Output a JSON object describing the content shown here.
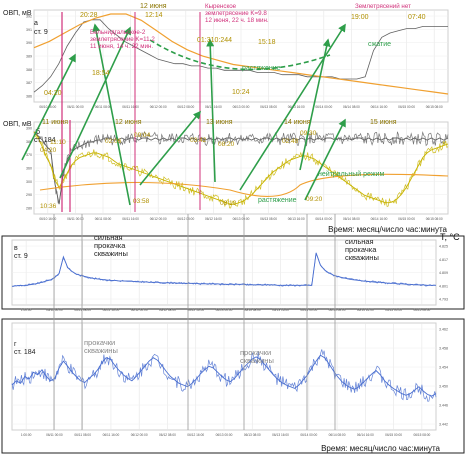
{
  "chart_data": [
    {
      "id": "a",
      "type": "line",
      "panel_letter": "а",
      "station": "ст. 9",
      "ylabel": "ОВП, мВ",
      "ylim": [
        -370,
        392
      ],
      "y_ticks": [
        392,
        391,
        390,
        389,
        388,
        387,
        386
      ],
      "x_ticks": [
        "06/10 16:00",
        "06/11 00:00",
        "06/11 08:00",
        "06/11 16:00",
        "06/12 00:00",
        "06/12 08:00",
        "06/12 16:00",
        "06/13 00:00",
        "06/13 08:00",
        "06/13 16:00",
        "06/14 00:00",
        "06/14 08:00",
        "06/14 16:00",
        "06/15 00:00",
        "06/15 08:00"
      ],
      "day_labels": [
        {
          "text": "12 июня",
          "x": 0.39
        }
      ],
      "series": [
        {
          "color": "#606060",
          "y": [
            388.3,
            388.6,
            389.0,
            389.6,
            390.4,
            391.0,
            391.5,
            391.6,
            391.6,
            391.2,
            390.9,
            390.6,
            390.4,
            390.2,
            390.0,
            389.8,
            389.7,
            389.6,
            389.6,
            389.5,
            389.5,
            389.4,
            389.4,
            389.3,
            389.3,
            389.3,
            389.3,
            389.2,
            389.2,
            389.2,
            389.1,
            389.1,
            389.1,
            389.0,
            389.0,
            389.0,
            389.0,
            388.9,
            388.9,
            388.9,
            389.0,
            390.2,
            390.8,
            391.0,
            391.1,
            391.2,
            391.2,
            391.3,
            391.3,
            391.3,
            391.3
          ]
        }
      ],
      "envelope_orange": [
        390.3,
        390.6,
        391.0,
        391.4,
        391.7,
        391.9,
        391.9,
        391.6,
        391.1,
        390.6,
        390.2,
        389.9,
        389.7,
        389.5,
        389.4,
        389.3,
        389.2,
        389.1,
        389.0,
        388.9,
        388.8,
        388.7,
        388.6,
        388.5,
        388.4,
        388.3,
        388.2,
        388.1
      ],
      "annotations": [
        {
          "text": "20:28",
          "color": "#b09000"
        },
        {
          "text": "12:14",
          "color": "#b09000"
        },
        {
          "text": "18:54",
          "color": "#b09000"
        },
        {
          "text": "01:310:244",
          "color": "#b09000"
        },
        {
          "text": "15:18",
          "color": "#b09000"
        },
        {
          "text": "19:00",
          "color": "#b09000"
        },
        {
          "text": "07:40",
          "color": "#b09000"
        },
        {
          "text": "10:24",
          "color": "#b09000"
        },
        {
          "text": "04:20",
          "color": "#b09000"
        },
        {
          "text": "растяжение",
          "color": "#2e9e4a"
        },
        {
          "text": "сжатие",
          "color": "#2e9e4a"
        }
      ],
      "events": [
        {
          "lines": [
            "Бельнидгальское-2",
            "землетрясение K=11.2",
            "11 июня, 14 ч. 22 мин."
          ],
          "color": "#d0307a"
        },
        {
          "lines": [
            "Кыренское",
            "землетрясение K=9.8",
            "12 июня, 22 ч. 18 мин."
          ],
          "color": "#d0307a"
        },
        {
          "lines": [
            "Землетрясений нет"
          ],
          "color": "#d0307a"
        }
      ]
    },
    {
      "id": "b",
      "type": "line",
      "panel_letter": "б",
      "station": "ст. 184",
      "ylabel": "ОВП, мВ",
      "ylim": [
        280,
        390
      ],
      "y_ticks": [
        390,
        380,
        370,
        360,
        300,
        290,
        280
      ],
      "x_ticks": [
        "06/10 16:00",
        "06/11 00:00",
        "06/11 08:00",
        "06/11 16:00",
        "06/12 00:00",
        "06/12 08:00",
        "06/12 16:00",
        "06/13 00:00",
        "06/13 08:00",
        "06/13 16:00",
        "06/14 00:00",
        "06/14 08:00",
        "06/14 16:00",
        "06/15 00:00",
        "06/15 08:00"
      ],
      "day_labels": [
        {
          "text": "11 июня"
        },
        {
          "text": "12 июня"
        },
        {
          "text": "13 июня"
        },
        {
          "text": "14 июня"
        },
        {
          "text": "15 июня"
        }
      ],
      "series": [
        {
          "color": "#606060",
          "y": [
            365,
            363,
            361,
            358,
            356,
            340,
            330,
            345,
            352,
            355,
            357,
            358,
            359,
            360,
            360,
            361,
            361,
            362,
            362,
            361,
            361,
            362,
            361,
            362,
            362,
            361,
            362,
            362,
            361,
            362,
            361,
            362,
            361,
            362,
            361,
            362,
            362,
            361,
            362,
            361,
            362,
            361,
            362,
            361,
            362,
            361,
            362,
            362,
            361,
            362,
            361,
            362,
            361,
            362,
            361,
            362,
            362,
            361,
            362,
            361,
            362,
            361,
            362,
            361,
            362,
            361,
            362,
            361,
            362,
            361,
            362,
            362,
            361,
            362,
            361,
            362,
            361,
            362,
            362,
            361,
            362,
            361,
            362,
            361,
            362,
            361,
            362,
            362,
            361,
            362,
            361,
            362,
            361,
            362,
            361,
            362,
            361,
            362,
            361,
            362
          ]
        },
        {
          "color": "#c8b400",
          "y": [
            352,
            348,
            342,
            335,
            330,
            320,
            315,
            320,
            325,
            330,
            333,
            335,
            336,
            337,
            338,
            338,
            337,
            336,
            335,
            333,
            331,
            330,
            329,
            328,
            327,
            326,
            325,
            324,
            323,
            322,
            321,
            320,
            319,
            318,
            317,
            316,
            315,
            314,
            313,
            312,
            311,
            310,
            309,
            308,
            307,
            306,
            305,
            304,
            304,
            305,
            306,
            308,
            310,
            313,
            316,
            319,
            322,
            325,
            327,
            329,
            331,
            333,
            334,
            335,
            336,
            336,
            335,
            334,
            332,
            330,
            328,
            326,
            324,
            322,
            320,
            318,
            316,
            314,
            312,
            310,
            309,
            308,
            307,
            306,
            305,
            305,
            306,
            308,
            311,
            315,
            320,
            325,
            330,
            335,
            338,
            340,
            341,
            342,
            343,
            344
          ]
        }
      ],
      "annotations": [
        {
          "text": "04:20",
          "color": "#b09000"
        },
        {
          "text": "11:10",
          "color": "#b09000"
        },
        {
          "text": "02:06",
          "color": "#b09000"
        },
        {
          "text": "09:04",
          "color": "#b09000"
        },
        {
          "text": "03:42",
          "color": "#b09000"
        },
        {
          "text": "08:20",
          "color": "#b09000"
        },
        {
          "text": "02:48",
          "color": "#b09000"
        },
        {
          "text": "09:30",
          "color": "#b09000"
        },
        {
          "text": "10:36",
          "color": "#b09000"
        },
        {
          "text": "03:58",
          "color": "#b09000"
        },
        {
          "text": "08:10",
          "color": "#b09000"
        },
        {
          "text": "09:20",
          "color": "#b09000"
        },
        {
          "text": "нейтральный режим",
          "color": "#2e9e4a"
        },
        {
          "text": "растяжение",
          "color": "#2e9e4a"
        }
      ],
      "xlabel": "Время: месяц/число час:минута"
    },
    {
      "id": "c",
      "type": "line",
      "panel_letter": "в",
      "station": "ст. 9",
      "ylabel": "T, °C",
      "y_ticks": [
        "4.825",
        "4.817",
        "4.809",
        "4.801",
        "4.793"
      ],
      "x_ticks": [
        "1:00:00",
        "06/11 00:00",
        "06/11 08:00",
        "06/11 16:00",
        "06/12 00:00",
        "06/12 08:00",
        "06/12 16:00",
        "06/13 00:00",
        "06/13 08:00",
        "06/13 16:00",
        "06/14 00:00",
        "06/14 08:00",
        "06/14 16:00",
        "06/15 00:00",
        "06/15 08:00"
      ],
      "annotations": [
        {
          "lines": [
            "сильная",
            "прокачка",
            "скважины"
          ],
          "color": "#222222"
        },
        {
          "lines": [
            "сильная",
            "прокачка",
            "скважины"
          ],
          "color": "#222222"
        }
      ],
      "series": [
        {
          "color": "#4a6fd0",
          "y": [
            0.22,
            0.23,
            0.24,
            0.23,
            0.25,
            0.26,
            0.28,
            0.3,
            0.33,
            0.35,
            0.4,
            0.48,
            0.82,
            0.6,
            0.52,
            0.47,
            0.44,
            0.42,
            0.4,
            0.38,
            0.37,
            0.36,
            0.35,
            0.34,
            0.34,
            0.33,
            0.33,
            0.32,
            0.32,
            0.31,
            0.31,
            0.31,
            0.3,
            0.3,
            0.3,
            0.29,
            0.29,
            0.29,
            0.29,
            0.28,
            0.28,
            0.28,
            0.28,
            0.28,
            0.27,
            0.27,
            0.27,
            0.27,
            0.27,
            0.26,
            0.26,
            0.26,
            0.26,
            0.26,
            0.26,
            0.25,
            0.25,
            0.25,
            0.25,
            0.25,
            0.25,
            0.25,
            0.24,
            0.24,
            0.24,
            0.24,
            0.24,
            0.24,
            0.24,
            0.24,
            0.24,
            0.9,
            0.65,
            0.55,
            0.49,
            0.45,
            0.42,
            0.4,
            0.38,
            0.36,
            0.35,
            0.34,
            0.33,
            0.32,
            0.31,
            0.3,
            0.3,
            0.29,
            0.28,
            0.28,
            0.27,
            0.27,
            0.26,
            0.26,
            0.25,
            0.25,
            0.25,
            0.24,
            0.24,
            0.24
          ]
        }
      ]
    },
    {
      "id": "d",
      "type": "line",
      "panel_letter": "г",
      "station": "ст. 184",
      "y_ticks": [
        "3.462",
        "3.458",
        "3.454",
        "3.450",
        "3.446",
        "3.442"
      ],
      "x_ticks": [
        "1:00:00",
        "06/11 00:00",
        "06/11 08:00",
        "06/11 16:00",
        "06/12 00:00",
        "06/12 08:00",
        "06/12 16:00",
        "06/13 00:00",
        "06/13 08:00",
        "06/13 16:00",
        "06/14 00:00",
        "06/14 08:00",
        "06/14 16:00",
        "06/15 00:00",
        "06/15 08:00"
      ],
      "annotations": [
        {
          "lines": [
            "прокачки",
            "скважины"
          ],
          "color": "#888888"
        },
        {
          "lines": [
            "прокачки",
            "скважины"
          ],
          "color": "#888888"
        }
      ],
      "series": [
        {
          "color": "#4a6fd0",
          "y": [
            0.4,
            0.45,
            0.42,
            0.5,
            0.47,
            0.55,
            0.52,
            0.58,
            0.5,
            0.45,
            0.48,
            0.6,
            0.68,
            0.62,
            0.55,
            0.5,
            0.45,
            0.43,
            0.48,
            0.52,
            0.58,
            0.66,
            0.72,
            0.7,
            0.63,
            0.57,
            0.52,
            0.48,
            0.45,
            0.5,
            0.56,
            0.62,
            0.68,
            0.72,
            0.69,
            0.63,
            0.56,
            0.5,
            0.46,
            0.42,
            0.4,
            0.38,
            0.42,
            0.47,
            0.53,
            0.58,
            0.62,
            0.6,
            0.55,
            0.5,
            0.46,
            0.44,
            0.48,
            0.54,
            0.6,
            0.65,
            0.7,
            0.73,
            0.7,
            0.64,
            0.58,
            0.52,
            0.47,
            0.43,
            0.4,
            0.38,
            0.36,
            0.4,
            0.46,
            0.52,
            0.6,
            0.68,
            0.75,
            0.72,
            0.65,
            0.57,
            0.5,
            0.44,
            0.4,
            0.37,
            0.35,
            0.38,
            0.43,
            0.48,
            0.53,
            0.57,
            0.52,
            0.45,
            0.4,
            0.36,
            0.33,
            0.3,
            0.28,
            0.3,
            0.34,
            0.38,
            0.33,
            0.29,
            0.27,
            0.3
          ]
        }
      ],
      "xlabel": "Время: месяц/число час:минута"
    }
  ]
}
